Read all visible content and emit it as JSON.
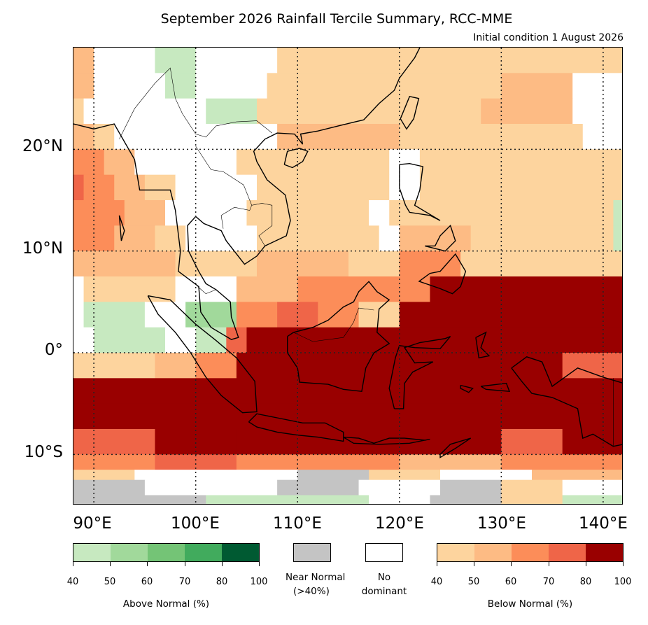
{
  "title": "September 2026 Rainfall Tercile Summary, RCC-MME",
  "subtitle": "Initial condition 1 August 2026",
  "map": {
    "lon_range": [
      88,
      142
    ],
    "lat_range": [
      -15,
      30
    ],
    "lat_labels": [
      "20°N",
      "10°N",
      "0°",
      "10°S"
    ],
    "lon_labels": [
      "90°E",
      "100°E",
      "110°E",
      "120°E",
      "130°E",
      "140°E"
    ],
    "gridline_style": "dotted",
    "grid_legend": "t=40-50% below, u=50-60% below, v=60-70% below, w=70-80% below, x=80-100% below, g=40-50% above, h=50-60% above, n=near normal, o=no dominant"
  },
  "colors": {
    "below_40_50": "#fdd49e",
    "below_50_60": "#fdbb84",
    "below_60_70": "#fc8d59",
    "below_70_80": "#ef6548",
    "below_80_100": "#990000",
    "above_40_50": "#c7e9c0",
    "above_50_60": "#a1d99b",
    "above_60_70": "#74c476",
    "above_70_80": "#41ab5d",
    "above_80_100": "#005a32",
    "near_normal": "#c4c4c4",
    "no_dominant": "#ffffff"
  },
  "legend": {
    "above": {
      "caption": "Above Normal (%)",
      "ticks": [
        "40",
        "50",
        "60",
        "70",
        "80",
        "100"
      ]
    },
    "near_normal": {
      "caption_line1": "Near Normal",
      "caption_line2": "(>40%)"
    },
    "no_dominant": {
      "caption_line1": "No",
      "caption_line2": "dominant"
    },
    "below": {
      "caption": "Below Normal (%)",
      "ticks": [
        "40",
        "50",
        "60",
        "70",
        "80",
        "100"
      ]
    }
  }
}
